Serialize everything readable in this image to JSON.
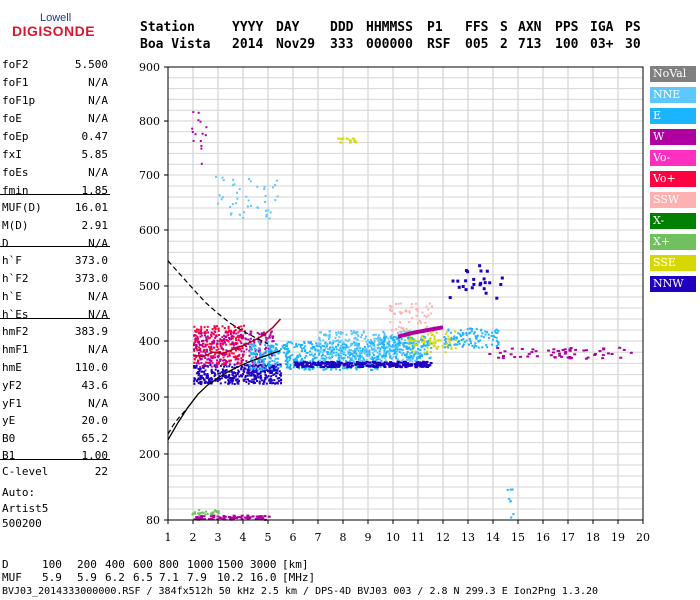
{
  "logo": {
    "line1": "Lowell",
    "line2": "DIGISONDE"
  },
  "header": {
    "row1": [
      "Station",
      "YYYY",
      "DAY",
      "DDD",
      "HHMMSS",
      "P1",
      "FFS",
      "S",
      "AXN",
      "PPS",
      "IGA",
      "PS"
    ],
    "row2": [
      "Boa Vista",
      "2014",
      "Nov29",
      "333",
      "000000",
      "RSF",
      "005",
      "2",
      "713",
      "100",
      "03+",
      "30"
    ]
  },
  "params": [
    {
      "name": "foF2",
      "value": "5.500"
    },
    {
      "name": "foF1",
      "value": "N/A"
    },
    {
      "name": "foF1p",
      "value": "N/A"
    },
    {
      "name": "foE",
      "value": "N/A"
    },
    {
      "name": "foEp",
      "value": "0.47"
    },
    {
      "name": "fxI",
      "value": "5.85"
    },
    {
      "name": "foEs",
      "value": "N/A"
    },
    {
      "name": "fmin",
      "value": "1.85"
    },
    {
      "name": "MUF(D)",
      "value": "16.01"
    },
    {
      "name": "M(D)",
      "value": "2.91"
    },
    {
      "name": "D",
      "value": "N/A"
    },
    {
      "name": "h`F",
      "value": "373.0"
    },
    {
      "name": "h`F2",
      "value": "373.0"
    },
    {
      "name": "h`E",
      "value": "N/A"
    },
    {
      "name": "h`Es",
      "value": "N/A"
    },
    {
      "name": "hmF2",
      "value": "383.9"
    },
    {
      "name": "hmF1",
      "value": "N/A"
    },
    {
      "name": "hmE",
      "value": "110.0"
    },
    {
      "name": "yF2",
      "value": "43.6"
    },
    {
      "name": "yF1",
      "value": "N/A"
    },
    {
      "name": "yE",
      "value": "20.0"
    },
    {
      "name": "B0",
      "value": "65.2"
    },
    {
      "name": "B1",
      "value": "1.00"
    },
    {
      "name": "C-level",
      "value": "22"
    }
  ],
  "auto": {
    "label": "Auto:",
    "artist": "Artist5",
    "code": "500200"
  },
  "legend": [
    {
      "label": "NoVal",
      "color": "#808080"
    },
    {
      "label": "NNE",
      "color": "#5cc8ff"
    },
    {
      "label": "E",
      "color": "#1ab4ff"
    },
    {
      "label": "W",
      "color": "#b000a0"
    },
    {
      "label": "Vo-",
      "color": "#ff30c0"
    },
    {
      "label": "Vo+",
      "color": "#ff0040"
    },
    {
      "label": "SSW",
      "color": "#ffb0b0"
    },
    {
      "label": "X-",
      "color": "#008000"
    },
    {
      "label": "X+",
      "color": "#70c060"
    },
    {
      "label": "SSE",
      "color": "#d8d800"
    },
    {
      "label": "NNW",
      "color": "#2000c0"
    }
  ],
  "chart_data": {
    "type": "scatter",
    "xticks": [
      1,
      2,
      3,
      4,
      5,
      6,
      7,
      8,
      9,
      10,
      11,
      12,
      13,
      14,
      15,
      16,
      17,
      18,
      19,
      20
    ],
    "yticks": [
      80,
      200,
      300,
      400,
      500,
      600,
      700,
      800,
      900
    ],
    "xlim": [
      1,
      20
    ],
    "ylim": [
      80,
      900
    ],
    "grid": true,
    "profile_curve": {
      "x": [
        1.0,
        1.4,
        1.8,
        2.2,
        2.6,
        3.0,
        3.4,
        3.8,
        4.2,
        4.6,
        5.0,
        5.5
      ],
      "y": [
        225,
        255,
        282,
        305,
        322,
        334,
        345,
        354,
        362,
        369,
        375,
        383
      ]
    },
    "dashed_curve_low": {
      "x": [
        1.0,
        1.2,
        1.4,
        1.6,
        1.8
      ],
      "y": [
        235,
        250,
        262,
        272,
        282
      ]
    },
    "dashed_curve_high": {
      "x": [
        1.0,
        1.5,
        2.0,
        2.5,
        3.0,
        3.5,
        4.0,
        4.5,
        5.0
      ],
      "y": [
        545,
        520,
        495,
        470,
        450,
        432,
        418,
        406,
        395
      ]
    },
    "trace_red": {
      "x": [
        2.0,
        2.4,
        2.8,
        3.2,
        3.6,
        4.0,
        4.4,
        4.8,
        5.2,
        5.5
      ],
      "y": [
        375,
        372,
        380,
        378,
        385,
        392,
        400,
        410,
        425,
        440
      ]
    },
    "trace_magenta": {
      "x": [
        10.2,
        10.8,
        11.4,
        12.0
      ],
      "y": [
        408,
        415,
        420,
        425
      ]
    }
  },
  "bottom": {
    "d_label": "D",
    "d_values": [
      "100",
      "200",
      "400",
      "600",
      "800",
      "1000",
      "1500",
      "3000",
      "[km]"
    ],
    "muf_label": "MUF",
    "muf_values": [
      "5.9",
      "5.9",
      "6.2",
      "6.5",
      "7.1",
      "7.9",
      "10.2",
      "16.0",
      "[MHz]"
    ],
    "footer": "BVJ03_2014333000000.RSF / 384fx512h 50 kHz 2.5 km / DPS-4D BVJ03 003 / 2.8 N 299.3 E Ion2Png 1.3.20"
  }
}
